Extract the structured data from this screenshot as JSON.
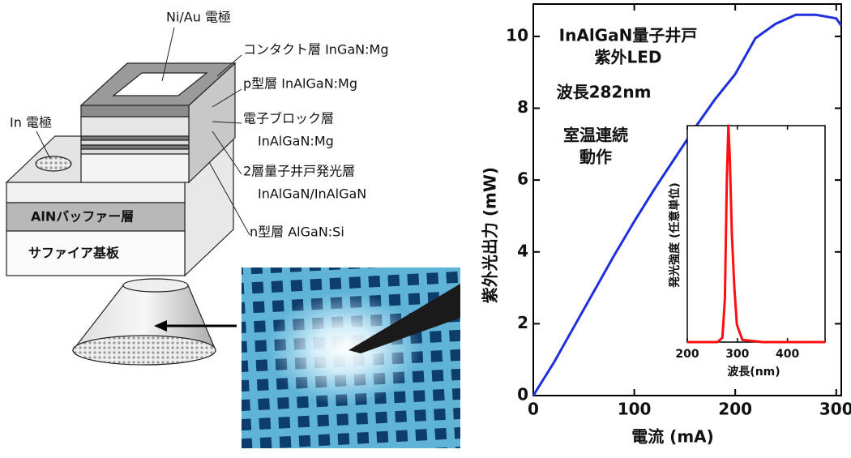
{
  "diagram": {
    "labels": [
      "Ni/Au 電極",
      "コンタクト層  InGaN:Mg",
      "p型層  InAlGaN:Mg",
      "電子ブロック層",
      "InAlGaN:Mg",
      "2層量子井戸発光層",
      "InAlGaN/InAlGaN",
      "n型層   AlGaN:Si",
      "In 電極",
      "AlNバッファー層",
      "サファイア基板"
    ]
  },
  "chart_data": [
    {
      "type": "line",
      "xlabel": "電流 (mA)",
      "ylabel": "紫外光出力 (mW)",
      "annotations": [
        "InAlGaN量子井戸",
        "紫外LED",
        "波長282nm",
        "室温連続",
        "動作"
      ],
      "x": [
        0,
        20,
        40,
        60,
        80,
        100,
        120,
        140,
        160,
        180,
        200,
        220,
        240,
        260,
        280,
        300,
        305
      ],
      "values": [
        0,
        0.9,
        1.9,
        2.9,
        3.9,
        4.85,
        5.75,
        6.6,
        7.45,
        8.25,
        8.95,
        9.95,
        10.35,
        10.6,
        10.6,
        10.5,
        10.3
      ],
      "color": "#1f2fe0",
      "xlim": [
        0,
        305
      ],
      "xticks": [
        0,
        100,
        200,
        300
      ],
      "ylim": [
        0,
        10.9
      ],
      "yticks": [
        0,
        2,
        4,
        6,
        8,
        10
      ],
      "grid": false
    },
    {
      "type": "line",
      "xlabel": "波長(nm)",
      "ylabel": "発光強度 (任意単位)",
      "x": [
        200,
        260,
        270,
        275,
        279,
        282,
        285,
        289,
        294,
        299,
        310,
        350,
        400,
        475
      ],
      "values": [
        0,
        0,
        0.02,
        0.2,
        0.75,
        1,
        0.85,
        0.5,
        0.25,
        0.08,
        0.01,
        0,
        0,
        0
      ],
      "color": "#ff1010",
      "xlim": [
        200,
        475
      ],
      "xticks": [
        200,
        300,
        400
      ],
      "ylim": [
        0,
        1
      ],
      "grid": false
    }
  ]
}
